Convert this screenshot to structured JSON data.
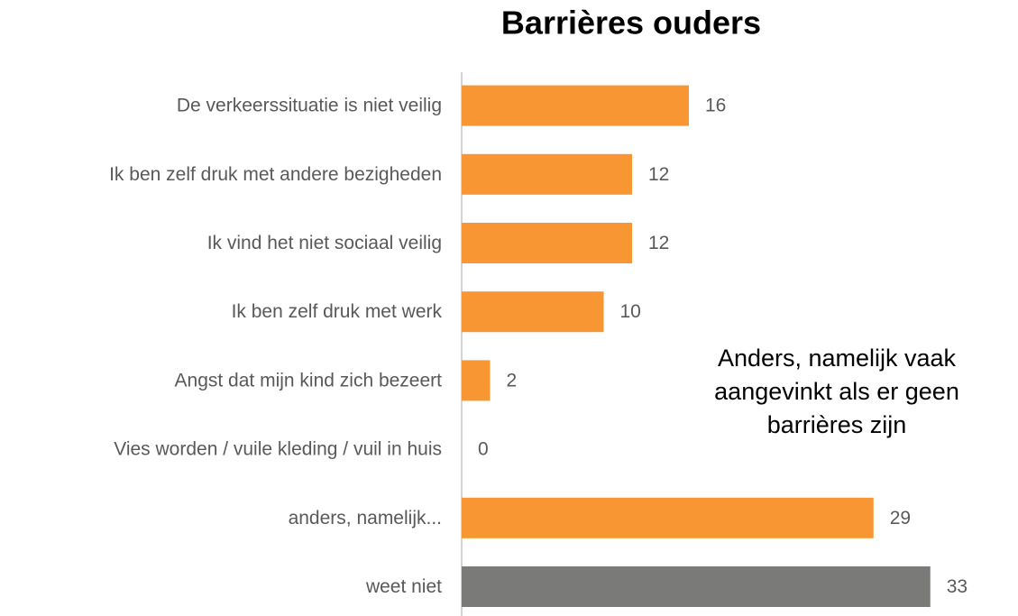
{
  "chart_data": {
    "type": "barh",
    "title": "Barrières ouders",
    "categories": [
      "De verkeerssituatie is niet veilig",
      "Ik ben zelf druk met andere bezigheden",
      "Ik vind het niet sociaal veilig",
      "Ik ben zelf druk met werk",
      "Angst dat mijn kind zich bezeert",
      "Vies worden / vuile kleding / vuil in huis",
      "anders, namelijk...",
      "weet niet"
    ],
    "values": [
      16,
      12,
      12,
      10,
      2,
      0,
      29,
      33
    ],
    "colors": [
      "#f79633",
      "#f79633",
      "#f79633",
      "#f79633",
      "#f79633",
      "#f79633",
      "#f79633",
      "#7a7b78"
    ],
    "xlim": [
      0,
      35
    ],
    "annotation": [
      "Anders, namelijk vaak",
      "aangevinkt als er geen",
      "barrières zijn"
    ]
  }
}
